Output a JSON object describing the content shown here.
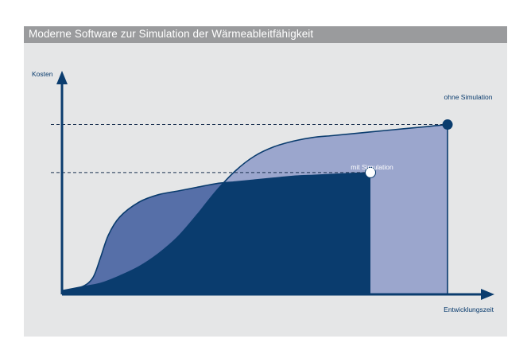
{
  "title": "Moderne Software zur Simulation der Wärmeableitfähigkeit",
  "chart_data": {
    "type": "area",
    "title": "Moderne Software zur Simulation der Wärmeableitfähigkeit",
    "xlabel": "Entwicklungszeit",
    "ylabel": "Kosten",
    "grid": false,
    "xlim": [
      0,
      100
    ],
    "ylim": [
      0,
      100
    ],
    "series": [
      {
        "name": "ohne Simulation",
        "color": "#9ba6cd",
        "x": [
          0,
          5,
          10,
          15,
          20,
          25,
          30,
          35,
          40,
          45,
          50,
          55,
          60,
          65,
          70,
          75,
          80,
          85,
          90,
          95,
          100
        ],
        "y": [
          2,
          4,
          6,
          10,
          15,
          22,
          31,
          43,
          56,
          67,
          75,
          80,
          83,
          85,
          86,
          87,
          88,
          89,
          90,
          91,
          92
        ],
        "end": {
          "x": 100,
          "y": 92
        }
      },
      {
        "name": "mit Simulation",
        "color": "#0a3c6e",
        "x": [
          0,
          5,
          8,
          10,
          12,
          15,
          20,
          25,
          30,
          35,
          40,
          45,
          50,
          55,
          60,
          65,
          70,
          75,
          80
        ],
        "y": [
          2,
          4,
          9,
          20,
          32,
          42,
          50,
          54,
          56,
          58,
          60,
          61,
          62,
          63,
          64,
          64.5,
          65,
          65.5,
          66
        ],
        "end": {
          "x": 80,
          "y": 66
        }
      }
    ]
  }
}
